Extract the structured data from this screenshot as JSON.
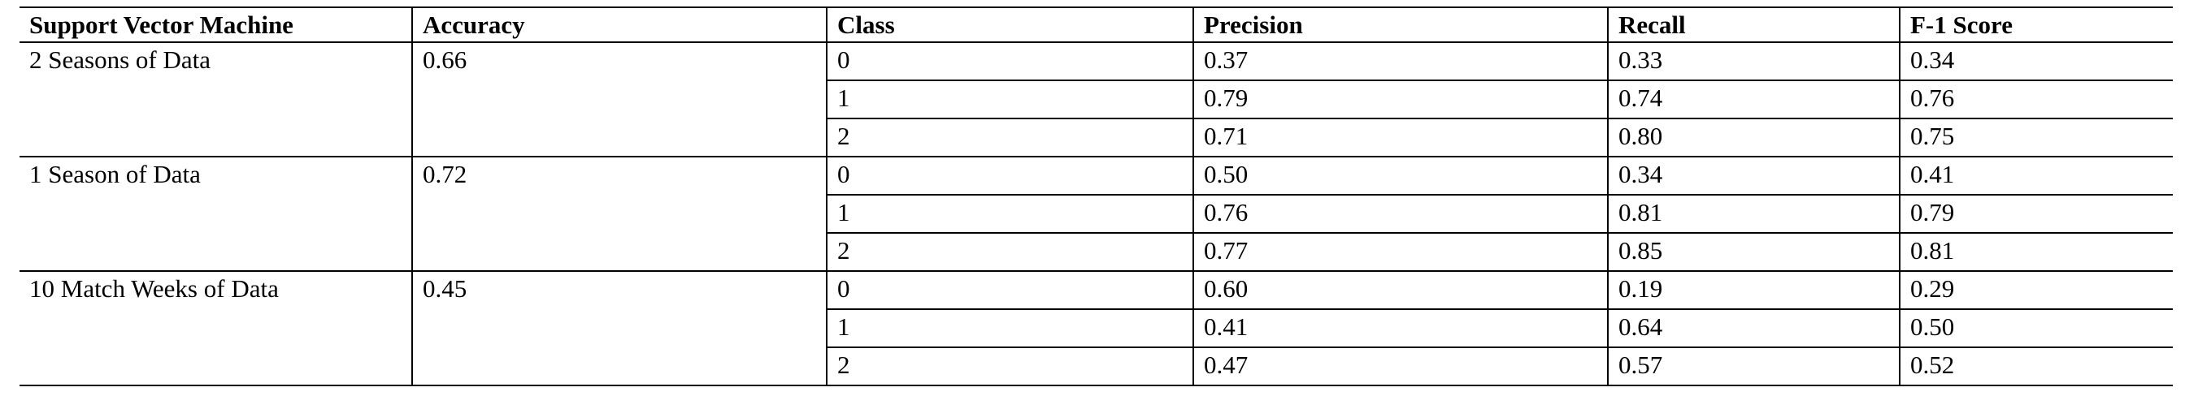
{
  "table": {
    "header": [
      "Support Vector Machine",
      "Accuracy",
      "Class",
      "Precision",
      "Recall",
      "F-1 Score"
    ],
    "groups": [
      {
        "label": "2 Seasons of Data",
        "accuracy": "0.66",
        "rows": [
          [
            "0",
            "0.37",
            "0.33",
            "0.34"
          ],
          [
            "1",
            "0.79",
            "0.74",
            "0.76"
          ],
          [
            "2",
            "0.71",
            "0.80",
            "0.75"
          ]
        ]
      },
      {
        "label": "1 Season of Data",
        "accuracy": "0.72",
        "rows": [
          [
            "0",
            "0.50",
            "0.34",
            "0.41"
          ],
          [
            "1",
            "0.76",
            "0.81",
            "0.79"
          ],
          [
            "2",
            "0.77",
            "0.85",
            "0.81"
          ]
        ]
      },
      {
        "label": "10 Match Weeks of Data",
        "accuracy": "0.45",
        "rows": [
          [
            "0",
            "0.60",
            "0.19",
            "0.29"
          ],
          [
            "1",
            "0.41",
            "0.64",
            "0.50"
          ],
          [
            "2",
            "0.47",
            "0.57",
            "0.52"
          ]
        ]
      }
    ]
  }
}
